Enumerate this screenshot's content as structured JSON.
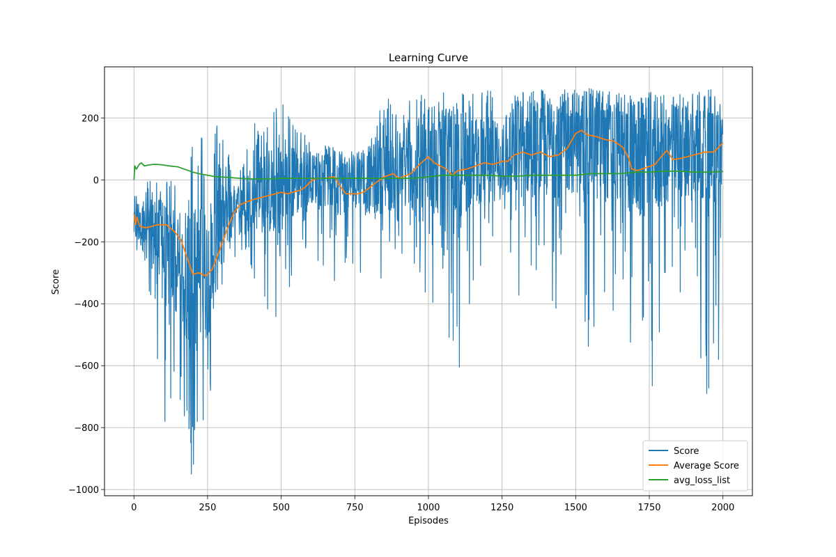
{
  "chart_data": {
    "type": "line",
    "title": "Learning Curve",
    "xlabel": "Episodes",
    "ylabel": "Score",
    "xlim": [
      -100,
      2100
    ],
    "ylim": [
      -1020,
      365
    ],
    "x_ticks": [
      0,
      250,
      500,
      750,
      1000,
      1250,
      1500,
      1750,
      2000
    ],
    "y_ticks": [
      -1000,
      -800,
      -600,
      -400,
      -200,
      0,
      200
    ],
    "x_tick_labels": [
      "0",
      "250",
      "500",
      "750",
      "1000",
      "1250",
      "1500",
      "1750",
      "2000"
    ],
    "y_tick_labels": [
      "−1000",
      "−800",
      "−600",
      "−400",
      "−200",
      "0",
      "200"
    ],
    "grid": true,
    "legend_position": "bottom-right",
    "n_episodes": 2000,
    "series": [
      {
        "name": "Score",
        "color": "#1f77b4",
        "style": "noisy",
        "note": "per-episode score; values below are the local center and spread (min,max) read from the plot",
        "center": [
          [
            0,
            -150
          ],
          [
            50,
            -160
          ],
          [
            100,
            -230
          ],
          [
            150,
            -300
          ],
          [
            200,
            -330
          ],
          [
            250,
            -300
          ],
          [
            300,
            -150
          ],
          [
            350,
            -70
          ],
          [
            400,
            -50
          ],
          [
            450,
            -40
          ],
          [
            500,
            -25
          ],
          [
            550,
            -10
          ],
          [
            600,
            0
          ],
          [
            650,
            10
          ],
          [
            700,
            0
          ],
          [
            750,
            -10
          ],
          [
            800,
            0
          ],
          [
            850,
            20
          ],
          [
            900,
            20
          ],
          [
            950,
            30
          ],
          [
            1000,
            40
          ],
          [
            1050,
            60
          ],
          [
            1100,
            50
          ],
          [
            1150,
            60
          ],
          [
            1200,
            60
          ],
          [
            1250,
            80
          ],
          [
            1300,
            100
          ],
          [
            1350,
            110
          ],
          [
            1400,
            100
          ],
          [
            1450,
            110
          ],
          [
            1500,
            130
          ],
          [
            1550,
            120
          ],
          [
            1600,
            110
          ],
          [
            1650,
            100
          ],
          [
            1700,
            60
          ],
          [
            1750,
            70
          ],
          [
            1800,
            80
          ],
          [
            1850,
            90
          ],
          [
            1900,
            100
          ],
          [
            1950,
            100
          ],
          [
            2000,
            110
          ]
        ],
        "low": [
          [
            0,
            -250
          ],
          [
            50,
            -400
          ],
          [
            100,
            -780
          ],
          [
            150,
            -750
          ],
          [
            200,
            -950
          ],
          [
            250,
            -780
          ],
          [
            300,
            -400
          ],
          [
            350,
            -250
          ],
          [
            400,
            -300
          ],
          [
            450,
            -430
          ],
          [
            500,
            -470
          ],
          [
            550,
            -300
          ],
          [
            600,
            -200
          ],
          [
            650,
            -350
          ],
          [
            700,
            -420
          ],
          [
            750,
            -250
          ],
          [
            800,
            -380
          ],
          [
            850,
            -300
          ],
          [
            900,
            -250
          ],
          [
            950,
            -300
          ],
          [
            1000,
            -450
          ],
          [
            1050,
            -450
          ],
          [
            1100,
            -600
          ],
          [
            1150,
            -350
          ],
          [
            1200,
            -300
          ],
          [
            1250,
            -350
          ],
          [
            1300,
            -440
          ],
          [
            1350,
            -400
          ],
          [
            1400,
            -430
          ],
          [
            1450,
            -450
          ],
          [
            1500,
            -470
          ],
          [
            1550,
            -560
          ],
          [
            1600,
            -520
          ],
          [
            1650,
            -470
          ],
          [
            1700,
            -580
          ],
          [
            1750,
            -660
          ],
          [
            1800,
            -450
          ],
          [
            1850,
            -400
          ],
          [
            1900,
            -450
          ],
          [
            1950,
            -690
          ],
          [
            2000,
            -300
          ]
        ],
        "high": [
          [
            0,
            -50
          ],
          [
            50,
            20
          ],
          [
            100,
            -10
          ],
          [
            150,
            30
          ],
          [
            200,
            180
          ],
          [
            250,
            185
          ],
          [
            300,
            205
          ],
          [
            350,
            -10
          ],
          [
            400,
            200
          ],
          [
            450,
            185
          ],
          [
            500,
            260
          ],
          [
            550,
            190
          ],
          [
            600,
            120
          ],
          [
            650,
            110
          ],
          [
            700,
            100
          ],
          [
            750,
            100
          ],
          [
            800,
            110
          ],
          [
            850,
            280
          ],
          [
            900,
            240
          ],
          [
            950,
            285
          ],
          [
            1000,
            295
          ],
          [
            1050,
            290
          ],
          [
            1100,
            285
          ],
          [
            1150,
            280
          ],
          [
            1200,
            290
          ],
          [
            1250,
            290
          ],
          [
            1300,
            300
          ],
          [
            1350,
            295
          ],
          [
            1400,
            290
          ],
          [
            1450,
            290
          ],
          [
            1500,
            295
          ],
          [
            1550,
            295
          ],
          [
            1600,
            290
          ],
          [
            1650,
            285
          ],
          [
            1700,
            280
          ],
          [
            1750,
            285
          ],
          [
            1800,
            280
          ],
          [
            1850,
            285
          ],
          [
            1900,
            290
          ],
          [
            1950,
            290
          ],
          [
            2000,
            295
          ]
        ],
        "spikes": [
          [
            195,
            -950
          ],
          [
            215,
            -780
          ],
          [
            235,
            -775
          ],
          [
            105,
            -780
          ],
          [
            125,
            -705
          ],
          [
            160,
            -635
          ],
          [
            180,
            -745
          ],
          [
            260,
            -680
          ],
          [
            1105,
            -605
          ],
          [
            1760,
            -665
          ],
          [
            1925,
            -575
          ],
          [
            1945,
            -690
          ],
          [
            1985,
            -580
          ]
        ]
      },
      {
        "name": "Average Score",
        "color": "#ff7f0e",
        "style": "line",
        "points": [
          [
            0,
            -110
          ],
          [
            5,
            -145
          ],
          [
            10,
            -120
          ],
          [
            20,
            -150
          ],
          [
            40,
            -155
          ],
          [
            60,
            -150
          ],
          [
            80,
            -145
          ],
          [
            110,
            -145
          ],
          [
            140,
            -170
          ],
          [
            160,
            -195
          ],
          [
            180,
            -250
          ],
          [
            200,
            -305
          ],
          [
            220,
            -300
          ],
          [
            245,
            -310
          ],
          [
            265,
            -290
          ],
          [
            290,
            -230
          ],
          [
            320,
            -150
          ],
          [
            340,
            -105
          ],
          [
            360,
            -80
          ],
          [
            400,
            -65
          ],
          [
            440,
            -55
          ],
          [
            480,
            -45
          ],
          [
            500,
            -40
          ],
          [
            520,
            -45
          ],
          [
            540,
            -40
          ],
          [
            560,
            -35
          ],
          [
            580,
            -25
          ],
          [
            600,
            -5
          ],
          [
            620,
            5
          ],
          [
            650,
            5
          ],
          [
            680,
            10
          ],
          [
            700,
            -20
          ],
          [
            720,
            -45
          ],
          [
            760,
            -45
          ],
          [
            780,
            -40
          ],
          [
            820,
            -10
          ],
          [
            850,
            10
          ],
          [
            880,
            20
          ],
          [
            900,
            5
          ],
          [
            940,
            20
          ],
          [
            970,
            50
          ],
          [
            1000,
            75
          ],
          [
            1020,
            55
          ],
          [
            1040,
            45
          ],
          [
            1060,
            35
          ],
          [
            1080,
            15
          ],
          [
            1100,
            30
          ],
          [
            1130,
            35
          ],
          [
            1160,
            45
          ],
          [
            1190,
            55
          ],
          [
            1220,
            50
          ],
          [
            1250,
            60
          ],
          [
            1270,
            60
          ],
          [
            1290,
            80
          ],
          [
            1320,
            90
          ],
          [
            1350,
            80
          ],
          [
            1380,
            90
          ],
          [
            1410,
            75
          ],
          [
            1440,
            80
          ],
          [
            1470,
            100
          ],
          [
            1500,
            150
          ],
          [
            1520,
            160
          ],
          [
            1540,
            145
          ],
          [
            1570,
            140
          ],
          [
            1600,
            130
          ],
          [
            1630,
            125
          ],
          [
            1660,
            105
          ],
          [
            1680,
            70
          ],
          [
            1690,
            35
          ],
          [
            1710,
            30
          ],
          [
            1740,
            40
          ],
          [
            1770,
            50
          ],
          [
            1790,
            75
          ],
          [
            1810,
            95
          ],
          [
            1830,
            65
          ],
          [
            1860,
            70
          ],
          [
            1900,
            80
          ],
          [
            1940,
            90
          ],
          [
            1970,
            90
          ],
          [
            2000,
            120
          ]
        ]
      },
      {
        "name": "avg_loss_list",
        "color": "#2ca02c",
        "style": "line",
        "points": [
          [
            0,
            0
          ],
          [
            3,
            45
          ],
          [
            8,
            35
          ],
          [
            12,
            40
          ],
          [
            18,
            50
          ],
          [
            25,
            55
          ],
          [
            35,
            45
          ],
          [
            50,
            48
          ],
          [
            65,
            50
          ],
          [
            80,
            50
          ],
          [
            100,
            48
          ],
          [
            120,
            45
          ],
          [
            150,
            42
          ],
          [
            170,
            35
          ],
          [
            200,
            25
          ],
          [
            220,
            20
          ],
          [
            250,
            15
          ],
          [
            280,
            10
          ],
          [
            320,
            8
          ],
          [
            360,
            5
          ],
          [
            400,
            3
          ],
          [
            450,
            3
          ],
          [
            500,
            5
          ],
          [
            550,
            5
          ],
          [
            600,
            5
          ],
          [
            650,
            5
          ],
          [
            700,
            5
          ],
          [
            750,
            5
          ],
          [
            800,
            5
          ],
          [
            850,
            5
          ],
          [
            900,
            5
          ],
          [
            950,
            5
          ],
          [
            1000,
            10
          ],
          [
            1050,
            15
          ],
          [
            1100,
            15
          ],
          [
            1150,
            15
          ],
          [
            1200,
            15
          ],
          [
            1250,
            12
          ],
          [
            1300,
            12
          ],
          [
            1350,
            15
          ],
          [
            1400,
            15
          ],
          [
            1450,
            15
          ],
          [
            1500,
            15
          ],
          [
            1550,
            20
          ],
          [
            1600,
            20
          ],
          [
            1650,
            20
          ],
          [
            1700,
            25
          ],
          [
            1750,
            25
          ],
          [
            1800,
            28
          ],
          [
            1850,
            28
          ],
          [
            1900,
            25
          ],
          [
            1950,
            25
          ],
          [
            2000,
            27
          ]
        ]
      }
    ]
  }
}
